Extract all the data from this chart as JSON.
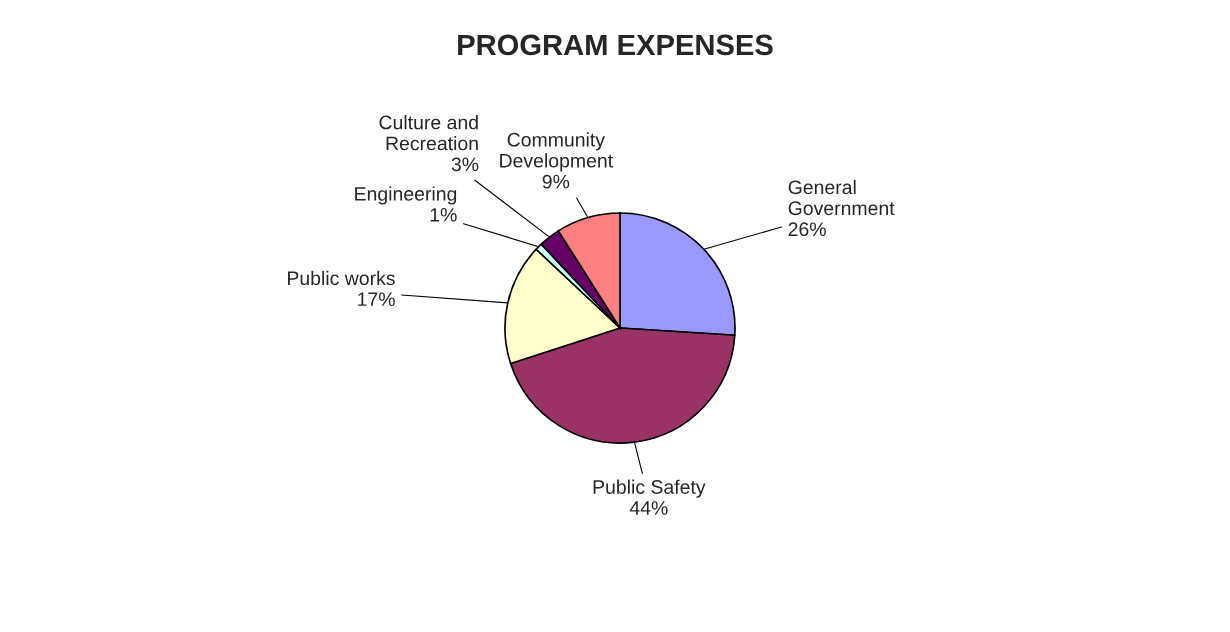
{
  "chart_data": {
    "type": "pie",
    "title": "PROGRAM EXPENSES",
    "categories": [
      "General\nGovernment",
      "Public Safety",
      "Public works",
      "Engineering",
      "Culture and\nRecreation",
      "Community\nDevelopment"
    ],
    "values": [
      26,
      44,
      17,
      1,
      3,
      9
    ],
    "value_labels": [
      "26%",
      "44%",
      "17%",
      "1%",
      "3%",
      "9%"
    ],
    "colors": [
      "#9999ff",
      "#993366",
      "#ffffcc",
      "#ccffff",
      "#660066",
      "#ff8080"
    ],
    "legend": false
  }
}
